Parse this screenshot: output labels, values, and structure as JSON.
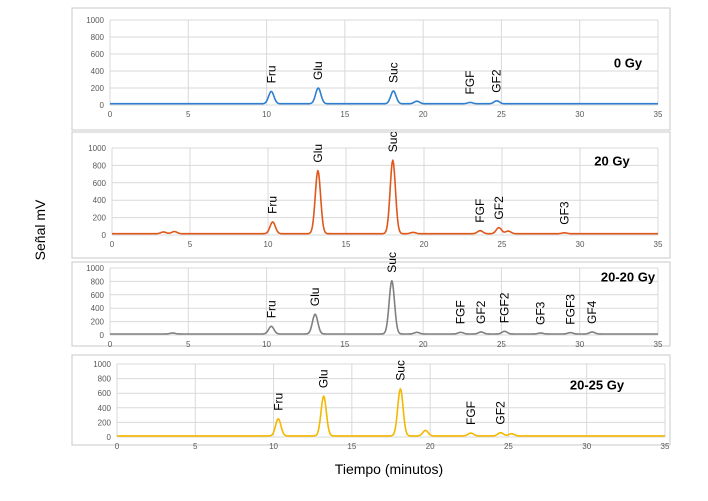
{
  "chart_data": [
    {
      "type": "line",
      "title": "0 Gy",
      "color": "#2f7fd0",
      "xlim": [
        0,
        35
      ],
      "ylim": [
        0,
        1000
      ],
      "xticks": [
        0,
        5,
        10,
        15,
        20,
        25,
        30,
        35
      ],
      "yticks": [
        0,
        200,
        400,
        600,
        800,
        1000
      ],
      "baseline": 15,
      "peaks": [
        {
          "x": 10.3,
          "y": 160,
          "label": "Fru"
        },
        {
          "x": 13.3,
          "y": 200,
          "label": "Glu"
        },
        {
          "x": 18.1,
          "y": 165,
          "label": "Suc"
        },
        {
          "x": 19.6,
          "y": 45,
          "label": ""
        },
        {
          "x": 23.0,
          "y": 30,
          "label": "FGF"
        },
        {
          "x": 24.7,
          "y": 50,
          "label": "GF2"
        }
      ]
    },
    {
      "type": "line",
      "title": "20 Gy",
      "color": "#e0571a",
      "xlim": [
        0,
        35
      ],
      "ylim": [
        0,
        1000
      ],
      "xticks": [
        0,
        5,
        10,
        15,
        20,
        25,
        30,
        35
      ],
      "yticks": [
        0,
        200,
        400,
        600,
        800,
        1000
      ],
      "baseline": 15,
      "peaks": [
        {
          "x": 3.3,
          "y": 35,
          "label": ""
        },
        {
          "x": 4.0,
          "y": 40,
          "label": ""
        },
        {
          "x": 10.3,
          "y": 150,
          "label": "Fru"
        },
        {
          "x": 13.2,
          "y": 740,
          "label": "Glu"
        },
        {
          "x": 18.0,
          "y": 860,
          "label": "Suc"
        },
        {
          "x": 19.3,
          "y": 30,
          "label": ""
        },
        {
          "x": 23.6,
          "y": 50,
          "label": "FGF"
        },
        {
          "x": 24.8,
          "y": 85,
          "label": "GF2"
        },
        {
          "x": 25.4,
          "y": 45,
          "label": ""
        },
        {
          "x": 29.0,
          "y": 25,
          "label": "GF3"
        }
      ]
    },
    {
      "type": "line",
      "title": "20-20 Gy",
      "color": "#808080",
      "xlim": [
        0,
        35
      ],
      "ylim": [
        0,
        1000
      ],
      "xticks": [
        0,
        5,
        10,
        15,
        20,
        25,
        30,
        35
      ],
      "yticks": [
        0,
        200,
        400,
        600,
        800,
        1000
      ],
      "baseline": 15,
      "peaks": [
        {
          "x": 4.0,
          "y": 30,
          "label": ""
        },
        {
          "x": 10.3,
          "y": 130,
          "label": "Fru"
        },
        {
          "x": 13.1,
          "y": 310,
          "label": "Glu"
        },
        {
          "x": 18.0,
          "y": 810,
          "label": "Suc"
        },
        {
          "x": 19.6,
          "y": 40,
          "label": ""
        },
        {
          "x": 22.4,
          "y": 40,
          "label": "FGF"
        },
        {
          "x": 23.7,
          "y": 45,
          "label": "GF2"
        },
        {
          "x": 25.2,
          "y": 55,
          "label": "FGF2"
        },
        {
          "x": 27.5,
          "y": 30,
          "label": "GF3"
        },
        {
          "x": 29.4,
          "y": 35,
          "label": "FGF3"
        },
        {
          "x": 30.8,
          "y": 45,
          "label": "GF4"
        }
      ]
    },
    {
      "type": "line",
      "title": "20-25 Gy",
      "color": "#f5b800",
      "xlim": [
        0,
        35
      ],
      "ylim": [
        0,
        1000
      ],
      "xticks": [
        0,
        5,
        10,
        15,
        20,
        25,
        30,
        35
      ],
      "yticks": [
        0,
        200,
        400,
        600,
        800,
        1000
      ],
      "baseline": 15,
      "peaks": [
        {
          "x": 10.3,
          "y": 250,
          "label": "Fru"
        },
        {
          "x": 13.2,
          "y": 560,
          "label": "Glu"
        },
        {
          "x": 18.1,
          "y": 660,
          "label": "Suc"
        },
        {
          "x": 19.7,
          "y": 90,
          "label": ""
        },
        {
          "x": 22.6,
          "y": 55,
          "label": "FGF"
        },
        {
          "x": 24.5,
          "y": 60,
          "label": "GF2"
        },
        {
          "x": 25.2,
          "y": 45,
          "label": ""
        }
      ]
    }
  ],
  "axes": {
    "xlabel": "Tiempo (minutos)",
    "ylabel": "Señal mV"
  }
}
